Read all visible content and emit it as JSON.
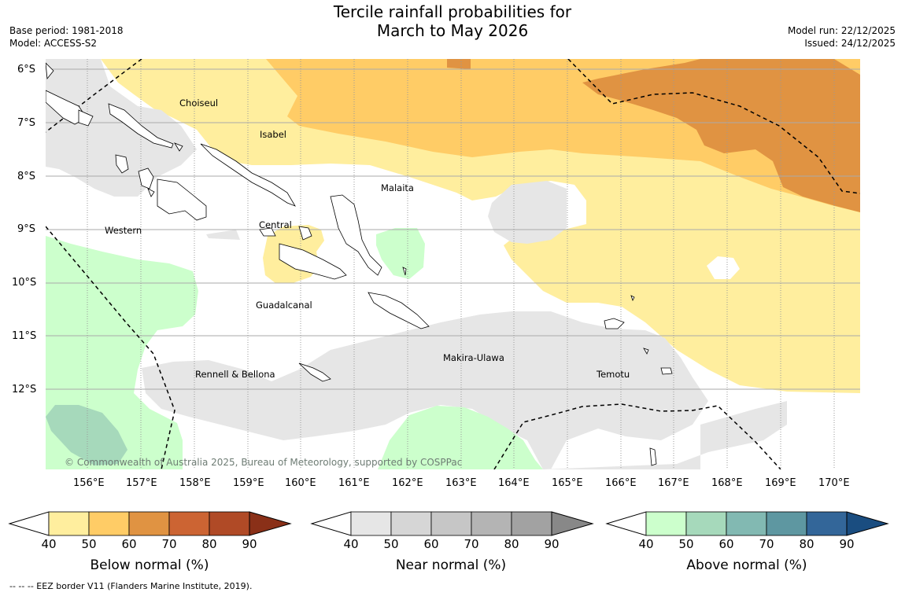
{
  "header": {
    "title_line1": "Tercile rainfall probabilities for",
    "title_line2": "March to May 2026",
    "base_period": "Base period: 1981-2018",
    "model": "Model: ACCESS-S2",
    "model_run": "Model run: 22/12/2025",
    "issued": "Issued: 24/12/2025"
  },
  "map": {
    "lat_labels": [
      "6°S",
      "7°S",
      "8°S",
      "9°S",
      "10°S",
      "11°S",
      "12°S"
    ],
    "lon_labels": [
      "156°E",
      "157°E",
      "158°E",
      "159°E",
      "160°E",
      "161°E",
      "162°E",
      "163°E",
      "164°E",
      "165°E",
      "166°E",
      "167°E",
      "168°E",
      "169°E",
      "170°E"
    ],
    "provinces": [
      "Choiseul",
      "Isabel",
      "Malaita",
      "Western",
      "Central",
      "Guadalcanal",
      "Makira-Ulawa",
      "Rennell & Bellona",
      "Temotu"
    ],
    "copyright": "© Commonwealth of Australia 2025, Bureau of Meteorology, supported by COSPPac"
  },
  "colorbars": [
    {
      "label": "Below normal (%)",
      "ticks": [
        "40",
        "50",
        "60",
        "70",
        "80",
        "90"
      ],
      "colors": [
        "#ffee9e",
        "#ffcc66",
        "#e09342",
        "#cc6433",
        "#b04a26",
        "#8a3018"
      ]
    },
    {
      "label": "Near normal (%)",
      "ticks": [
        "40",
        "50",
        "60",
        "70",
        "80",
        "90"
      ],
      "colors": [
        "#e6e6e6",
        "#d6d6d6",
        "#c6c6c6",
        "#b4b4b4",
        "#a2a2a2",
        "#888888"
      ]
    },
    {
      "label": "Above normal (%)",
      "ticks": [
        "40",
        "50",
        "60",
        "70",
        "80",
        "90"
      ],
      "colors": [
        "#ccffcc",
        "#a6d9bb",
        "#82b9b2",
        "#5e97a1",
        "#336699",
        "#1a4d80"
      ]
    }
  ],
  "footer": {
    "eez_note": "--  --  -- EEZ border V11 (Flanders Marine Institute, 2019)."
  }
}
